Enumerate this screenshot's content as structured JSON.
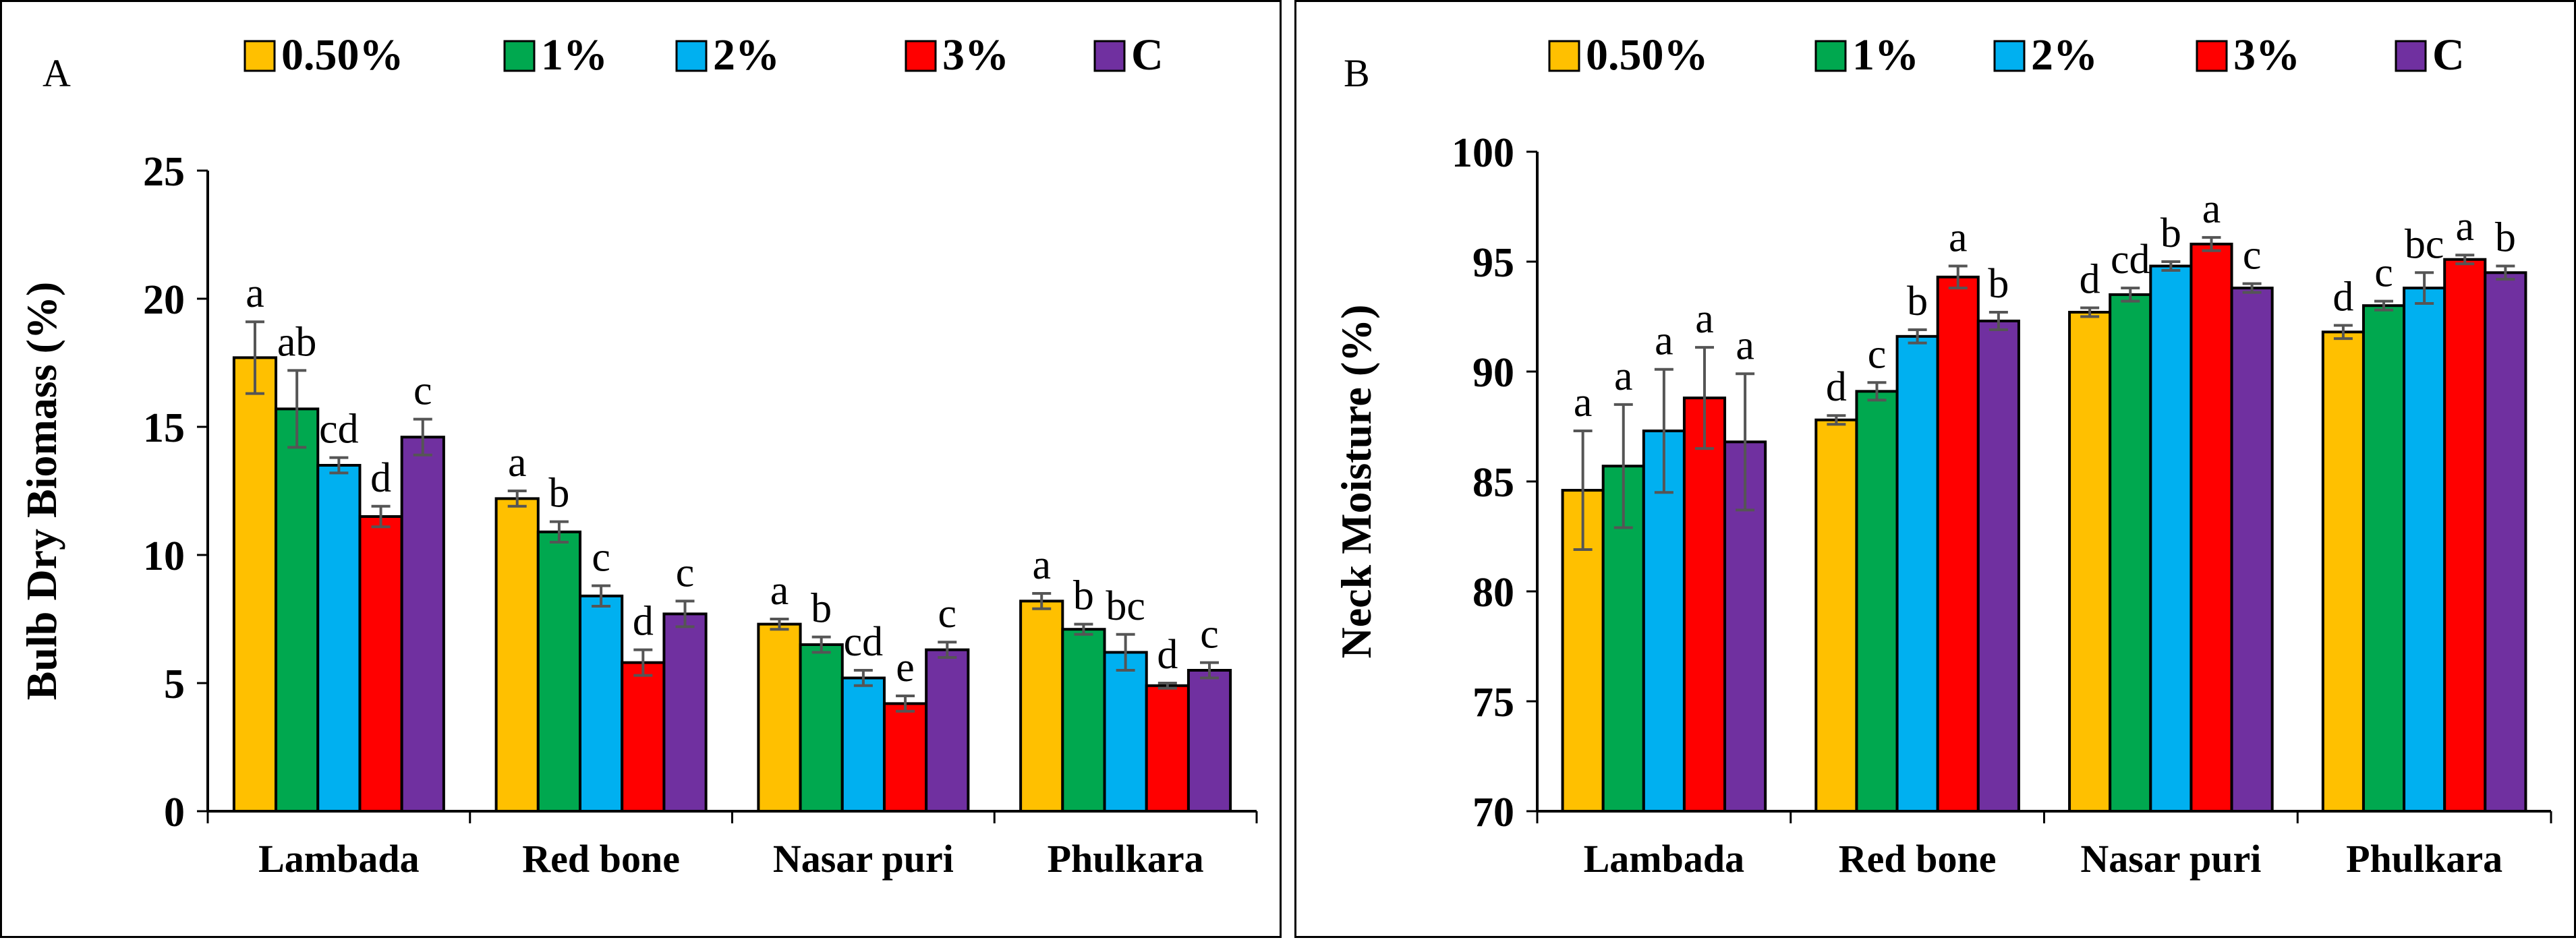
{
  "chart_data": [
    {
      "panel_label": "A",
      "type": "bar",
      "ylabel": "Bulb Dry Biomass (%)",
      "xlabel": "",
      "ylim": [
        0,
        25
      ],
      "yticks": [
        "0",
        "5",
        "10",
        "15",
        "20",
        "25"
      ],
      "legend_position": "top",
      "categories": [
        "Lambada",
        "Red bone",
        "Nasar puri",
        "Phulkara"
      ],
      "series": [
        {
          "name": "0.50%",
          "color": "#FFC000",
          "values": [
            17.7,
            12.2,
            7.3,
            8.2
          ],
          "errors": [
            1.4,
            0.3,
            0.2,
            0.3
          ],
          "letters": [
            "a",
            "a",
            "a",
            "a"
          ]
        },
        {
          "name": "1%",
          "color": "#00A84F",
          "values": [
            15.7,
            10.9,
            6.5,
            7.1
          ],
          "errors": [
            1.5,
            0.4,
            0.3,
            0.2
          ],
          "letters": [
            "ab",
            "b",
            "b",
            "b"
          ]
        },
        {
          "name": "2%",
          "color": "#00B0F0",
          "values": [
            13.5,
            8.4,
            5.2,
            6.2
          ],
          "errors": [
            0.3,
            0.4,
            0.3,
            0.7
          ],
          "letters": [
            "cd",
            "c",
            "cd",
            "bc"
          ]
        },
        {
          "name": "3%",
          "color": "#FF0000",
          "values": [
            11.5,
            5.8,
            4.2,
            4.9
          ],
          "errors": [
            0.4,
            0.5,
            0.3,
            0.1
          ],
          "letters": [
            "d",
            "d",
            "e",
            "d"
          ]
        },
        {
          "name": "C",
          "color": "#7030A0",
          "values": [
            14.6,
            7.7,
            6.3,
            5.5
          ],
          "errors": [
            0.7,
            0.5,
            0.3,
            0.3
          ],
          "letters": [
            "c",
            "c",
            "c",
            "c"
          ]
        }
      ]
    },
    {
      "panel_label": "B",
      "type": "bar",
      "ylabel": "Neck Moisture (%)",
      "xlabel": "",
      "ylim": [
        70,
        100
      ],
      "yticks": [
        "70",
        "75",
        "80",
        "85",
        "90",
        "95",
        "100"
      ],
      "legend_position": "top",
      "categories": [
        "Lambada",
        "Red bone",
        "Nasar puri",
        "Phulkara"
      ],
      "series": [
        {
          "name": "0.50%",
          "color": "#FFC000",
          "values": [
            84.6,
            87.8,
            92.7,
            91.8
          ],
          "errors": [
            2.7,
            0.2,
            0.2,
            0.3
          ],
          "letters": [
            "a",
            "d",
            "d",
            "d"
          ]
        },
        {
          "name": "1%",
          "color": "#00A84F",
          "values": [
            85.7,
            89.1,
            93.5,
            93.0
          ],
          "errors": [
            2.8,
            0.4,
            0.3,
            0.2
          ],
          "letters": [
            "a",
            "c",
            "cd",
            "c"
          ]
        },
        {
          "name": "2%",
          "color": "#00B0F0",
          "values": [
            87.3,
            91.6,
            94.8,
            93.8
          ],
          "errors": [
            2.8,
            0.3,
            0.2,
            0.7
          ],
          "letters": [
            "a",
            "b",
            "b",
            "bc"
          ]
        },
        {
          "name": "3%",
          "color": "#FF0000",
          "values": [
            88.8,
            94.3,
            95.8,
            95.1
          ],
          "errors": [
            2.3,
            0.5,
            0.3,
            0.2
          ],
          "letters": [
            "a",
            "a",
            "a",
            "a"
          ]
        },
        {
          "name": "C",
          "color": "#7030A0",
          "values": [
            86.8,
            92.3,
            93.8,
            94.5
          ],
          "errors": [
            3.1,
            0.4,
            0.2,
            0.3
          ],
          "letters": [
            "a",
            "b",
            "c",
            "b"
          ]
        }
      ]
    }
  ]
}
